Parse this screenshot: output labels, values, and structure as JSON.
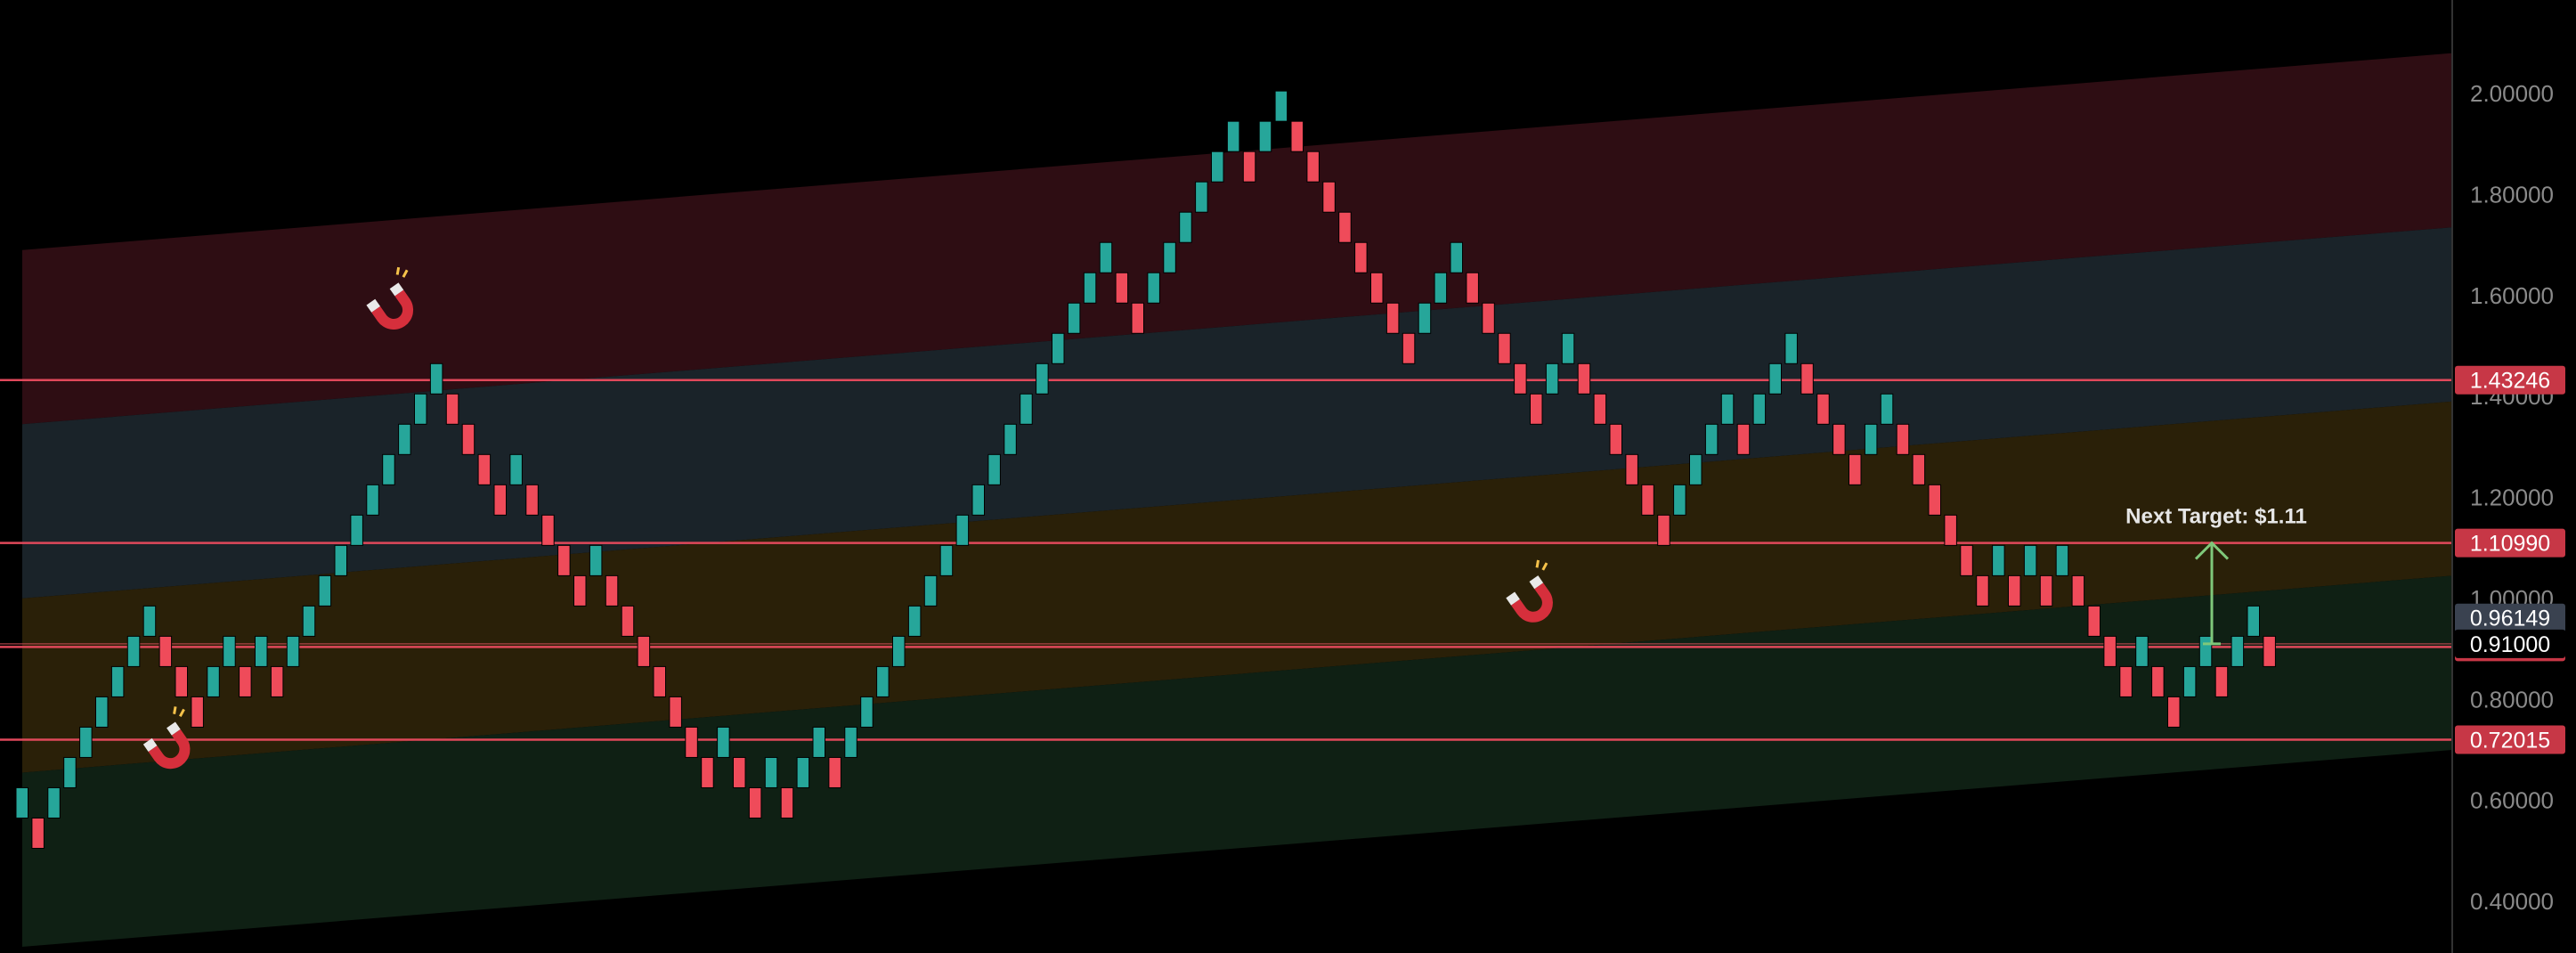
{
  "chart_data": {
    "type": "renko",
    "ylim": [
      0.32,
      2.1
    ],
    "y_ticks": [
      0.4,
      0.6,
      0.8,
      1.0,
      1.2,
      1.4,
      1.6,
      1.8,
      2.0
    ],
    "y_tick_labels": [
      "0.40000",
      "0.60000",
      "0.80000",
      "1.00000",
      "1.20000",
      "1.40000",
      "1.60000",
      "1.80000",
      "2.00000"
    ],
    "brick_size": 0.06,
    "bricks": [
      {
        "dir": "up",
        "open": 0.565,
        "close": 0.625
      },
      {
        "dir": "down",
        "open": 0.565,
        "close": 0.505
      },
      {
        "dir": "up",
        "open": 0.565,
        "close": 0.625
      },
      {
        "dir": "up",
        "open": 0.625,
        "close": 0.685
      },
      {
        "dir": "up",
        "open": 0.685,
        "close": 0.745
      },
      {
        "dir": "up",
        "open": 0.745,
        "close": 0.805
      },
      {
        "dir": "up",
        "open": 0.805,
        "close": 0.865
      },
      {
        "dir": "up",
        "open": 0.865,
        "close": 0.925
      },
      {
        "dir": "up",
        "open": 0.925,
        "close": 0.985
      },
      {
        "dir": "down",
        "open": 0.925,
        "close": 0.865
      },
      {
        "dir": "down",
        "open": 0.865,
        "close": 0.805
      },
      {
        "dir": "down",
        "open": 0.805,
        "close": 0.745
      },
      {
        "dir": "up",
        "open": 0.805,
        "close": 0.865
      },
      {
        "dir": "up",
        "open": 0.865,
        "close": 0.925
      },
      {
        "dir": "down",
        "open": 0.865,
        "close": 0.805
      },
      {
        "dir": "up",
        "open": 0.865,
        "close": 0.925
      },
      {
        "dir": "down",
        "open": 0.865,
        "close": 0.805
      },
      {
        "dir": "up",
        "open": 0.865,
        "close": 0.925
      },
      {
        "dir": "up",
        "open": 0.925,
        "close": 0.985
      },
      {
        "dir": "up",
        "open": 0.985,
        "close": 1.045
      },
      {
        "dir": "up",
        "open": 1.045,
        "close": 1.105
      },
      {
        "dir": "up",
        "open": 1.105,
        "close": 1.165
      },
      {
        "dir": "up",
        "open": 1.165,
        "close": 1.225
      },
      {
        "dir": "up",
        "open": 1.225,
        "close": 1.285
      },
      {
        "dir": "up",
        "open": 1.285,
        "close": 1.345
      },
      {
        "dir": "up",
        "open": 1.345,
        "close": 1.405
      },
      {
        "dir": "up",
        "open": 1.405,
        "close": 1.465
      },
      {
        "dir": "down",
        "open": 1.405,
        "close": 1.345
      },
      {
        "dir": "down",
        "open": 1.345,
        "close": 1.285
      },
      {
        "dir": "down",
        "open": 1.285,
        "close": 1.225
      },
      {
        "dir": "down",
        "open": 1.225,
        "close": 1.165
      },
      {
        "dir": "up",
        "open": 1.225,
        "close": 1.285
      },
      {
        "dir": "down",
        "open": 1.225,
        "close": 1.165
      },
      {
        "dir": "down",
        "open": 1.165,
        "close": 1.105
      },
      {
        "dir": "down",
        "open": 1.105,
        "close": 1.045
      },
      {
        "dir": "down",
        "open": 1.045,
        "close": 0.985
      },
      {
        "dir": "up",
        "open": 1.045,
        "close": 1.105
      },
      {
        "dir": "down",
        "open": 1.045,
        "close": 0.985
      },
      {
        "dir": "down",
        "open": 0.985,
        "close": 0.925
      },
      {
        "dir": "down",
        "open": 0.925,
        "close": 0.865
      },
      {
        "dir": "down",
        "open": 0.865,
        "close": 0.805
      },
      {
        "dir": "down",
        "open": 0.805,
        "close": 0.745
      },
      {
        "dir": "down",
        "open": 0.745,
        "close": 0.685
      },
      {
        "dir": "down",
        "open": 0.685,
        "close": 0.625
      },
      {
        "dir": "up",
        "open": 0.685,
        "close": 0.745
      },
      {
        "dir": "down",
        "open": 0.685,
        "close": 0.625
      },
      {
        "dir": "down",
        "open": 0.625,
        "close": 0.565
      },
      {
        "dir": "up",
        "open": 0.625,
        "close": 0.685
      },
      {
        "dir": "down",
        "open": 0.625,
        "close": 0.565
      },
      {
        "dir": "up",
        "open": 0.625,
        "close": 0.685
      },
      {
        "dir": "up",
        "open": 0.685,
        "close": 0.745
      },
      {
        "dir": "down",
        "open": 0.685,
        "close": 0.625
      },
      {
        "dir": "up",
        "open": 0.685,
        "close": 0.745
      },
      {
        "dir": "up",
        "open": 0.745,
        "close": 0.805
      },
      {
        "dir": "up",
        "open": 0.805,
        "close": 0.865
      },
      {
        "dir": "up",
        "open": 0.865,
        "close": 0.925
      },
      {
        "dir": "up",
        "open": 0.925,
        "close": 0.985
      },
      {
        "dir": "up",
        "open": 0.985,
        "close": 1.045
      },
      {
        "dir": "up",
        "open": 1.045,
        "close": 1.105
      },
      {
        "dir": "up",
        "open": 1.105,
        "close": 1.165
      },
      {
        "dir": "up",
        "open": 1.165,
        "close": 1.225
      },
      {
        "dir": "up",
        "open": 1.225,
        "close": 1.285
      },
      {
        "dir": "up",
        "open": 1.285,
        "close": 1.345
      },
      {
        "dir": "up",
        "open": 1.345,
        "close": 1.405
      },
      {
        "dir": "up",
        "open": 1.405,
        "close": 1.465
      },
      {
        "dir": "up",
        "open": 1.465,
        "close": 1.525
      },
      {
        "dir": "up",
        "open": 1.525,
        "close": 1.585
      },
      {
        "dir": "up",
        "open": 1.585,
        "close": 1.645
      },
      {
        "dir": "up",
        "open": 1.645,
        "close": 1.705
      },
      {
        "dir": "down",
        "open": 1.645,
        "close": 1.585
      },
      {
        "dir": "down",
        "open": 1.585,
        "close": 1.525
      },
      {
        "dir": "up",
        "open": 1.585,
        "close": 1.645
      },
      {
        "dir": "up",
        "open": 1.645,
        "close": 1.705
      },
      {
        "dir": "up",
        "open": 1.705,
        "close": 1.765
      },
      {
        "dir": "up",
        "open": 1.765,
        "close": 1.825
      },
      {
        "dir": "up",
        "open": 1.825,
        "close": 1.885
      },
      {
        "dir": "up",
        "open": 1.885,
        "close": 1.945
      },
      {
        "dir": "down",
        "open": 1.885,
        "close": 1.825
      },
      {
        "dir": "up",
        "open": 1.885,
        "close": 1.945
      },
      {
        "dir": "up",
        "open": 1.945,
        "close": 2.005
      },
      {
        "dir": "down",
        "open": 1.945,
        "close": 1.885
      },
      {
        "dir": "down",
        "open": 1.885,
        "close": 1.825
      },
      {
        "dir": "down",
        "open": 1.825,
        "close": 1.765
      },
      {
        "dir": "down",
        "open": 1.765,
        "close": 1.705
      },
      {
        "dir": "down",
        "open": 1.705,
        "close": 1.645
      },
      {
        "dir": "down",
        "open": 1.645,
        "close": 1.585
      },
      {
        "dir": "down",
        "open": 1.585,
        "close": 1.525
      },
      {
        "dir": "down",
        "open": 1.525,
        "close": 1.465
      },
      {
        "dir": "up",
        "open": 1.525,
        "close": 1.585
      },
      {
        "dir": "up",
        "open": 1.585,
        "close": 1.645
      },
      {
        "dir": "up",
        "open": 1.645,
        "close": 1.705
      },
      {
        "dir": "down",
        "open": 1.645,
        "close": 1.585
      },
      {
        "dir": "down",
        "open": 1.585,
        "close": 1.525
      },
      {
        "dir": "down",
        "open": 1.525,
        "close": 1.465
      },
      {
        "dir": "down",
        "open": 1.465,
        "close": 1.405
      },
      {
        "dir": "down",
        "open": 1.405,
        "close": 1.345
      },
      {
        "dir": "up",
        "open": 1.405,
        "close": 1.465
      },
      {
        "dir": "up",
        "open": 1.465,
        "close": 1.525
      },
      {
        "dir": "down",
        "open": 1.465,
        "close": 1.405
      },
      {
        "dir": "down",
        "open": 1.405,
        "close": 1.345
      },
      {
        "dir": "down",
        "open": 1.345,
        "close": 1.285
      },
      {
        "dir": "down",
        "open": 1.285,
        "close": 1.225
      },
      {
        "dir": "down",
        "open": 1.225,
        "close": 1.165
      },
      {
        "dir": "down",
        "open": 1.165,
        "close": 1.105
      },
      {
        "dir": "up",
        "open": 1.165,
        "close": 1.225
      },
      {
        "dir": "up",
        "open": 1.225,
        "close": 1.285
      },
      {
        "dir": "up",
        "open": 1.285,
        "close": 1.345
      },
      {
        "dir": "up",
        "open": 1.345,
        "close": 1.405
      },
      {
        "dir": "down",
        "open": 1.345,
        "close": 1.285
      },
      {
        "dir": "up",
        "open": 1.345,
        "close": 1.405
      },
      {
        "dir": "up",
        "open": 1.405,
        "close": 1.465
      },
      {
        "dir": "up",
        "open": 1.465,
        "close": 1.525
      },
      {
        "dir": "down",
        "open": 1.465,
        "close": 1.405
      },
      {
        "dir": "down",
        "open": 1.405,
        "close": 1.345
      },
      {
        "dir": "down",
        "open": 1.345,
        "close": 1.285
      },
      {
        "dir": "down",
        "open": 1.285,
        "close": 1.225
      },
      {
        "dir": "up",
        "open": 1.285,
        "close": 1.345
      },
      {
        "dir": "up",
        "open": 1.345,
        "close": 1.405
      },
      {
        "dir": "down",
        "open": 1.345,
        "close": 1.285
      },
      {
        "dir": "down",
        "open": 1.285,
        "close": 1.225
      },
      {
        "dir": "down",
        "open": 1.225,
        "close": 1.165
      },
      {
        "dir": "down",
        "open": 1.165,
        "close": 1.105
      },
      {
        "dir": "down",
        "open": 1.105,
        "close": 1.045
      },
      {
        "dir": "down",
        "open": 1.045,
        "close": 0.985
      },
      {
        "dir": "up",
        "open": 1.045,
        "close": 1.105
      },
      {
        "dir": "down",
        "open": 1.045,
        "close": 0.985
      },
      {
        "dir": "up",
        "open": 1.045,
        "close": 1.105
      },
      {
        "dir": "down",
        "open": 1.045,
        "close": 0.985
      },
      {
        "dir": "up",
        "open": 1.045,
        "close": 1.105
      },
      {
        "dir": "down",
        "open": 1.045,
        "close": 0.985
      },
      {
        "dir": "down",
        "open": 0.985,
        "close": 0.925
      },
      {
        "dir": "down",
        "open": 0.925,
        "close": 0.865
      },
      {
        "dir": "down",
        "open": 0.865,
        "close": 0.805
      },
      {
        "dir": "up",
        "open": 0.865,
        "close": 0.925
      },
      {
        "dir": "down",
        "open": 0.865,
        "close": 0.805
      },
      {
        "dir": "down",
        "open": 0.805,
        "close": 0.745
      },
      {
        "dir": "up",
        "open": 0.805,
        "close": 0.865
      },
      {
        "dir": "up",
        "open": 0.865,
        "close": 0.925
      },
      {
        "dir": "down",
        "open": 0.865,
        "close": 0.805
      },
      {
        "dir": "up",
        "open": 0.865,
        "close": 0.925
      },
      {
        "dir": "up",
        "open": 0.925,
        "close": 0.985
      },
      {
        "dir": "down",
        "open": 0.925,
        "close": 0.865
      }
    ],
    "channel_bands": [
      {
        "color": "#2e0d13",
        "top_left": 1.69,
        "top_right": 2.08,
        "bottom_left": 1.345,
        "bottom_right": 1.735
      },
      {
        "color": "#1a2329",
        "top_left": 1.345,
        "top_right": 1.735,
        "bottom_left": 1.0,
        "bottom_right": 1.39
      },
      {
        "color": "#2a2008",
        "top_left": 1.0,
        "top_right": 1.39,
        "bottom_left": 0.655,
        "bottom_right": 1.045
      },
      {
        "color": "#0f2014",
        "top_left": 0.655,
        "top_right": 1.045,
        "bottom_left": 0.31,
        "bottom_right": 0.7
      }
    ],
    "horizontal_levels": [
      {
        "value": 1.43246,
        "label": "1.43246",
        "color": "#e0485a",
        "tag_bg": "#c73746",
        "tag_color": "#ffffff"
      },
      {
        "value": 1.1099,
        "label": "1.10990",
        "color": "#e0485a",
        "tag_bg": "#c73746",
        "tag_color": "#ffffff"
      },
      {
        "value": 0.90382,
        "label": "0.90382",
        "color": "#e0485a",
        "tag_bg": "#c73746",
        "tag_color": "#ffffff"
      },
      {
        "value": 0.72015,
        "label": "0.72015",
        "color": "#e0485a",
        "tag_bg": "#c73746",
        "tag_color": "#ffffff"
      }
    ],
    "price_tags": [
      {
        "value": 0.96149,
        "label": "0.96149",
        "bg": "#3a4250",
        "color": "#ffffff"
      },
      {
        "value": 0.91,
        "label": "0.91000",
        "bg": "#000000",
        "color": "#ffffff"
      }
    ],
    "annotation": {
      "text": "Next Target: $1.11",
      "from_value": 0.91,
      "to_value": 1.1099,
      "color": "#7fc87a"
    },
    "magnet_icons": [
      {
        "x_brick": 23.5,
        "value": 1.58
      },
      {
        "x_brick": 9.5,
        "value": 0.71
      },
      {
        "x_brick": 95.0,
        "value": 1.0
      }
    ],
    "colors": {
      "up": "#26a69a",
      "down": "#ef4b5a",
      "background": "#000000",
      "axis_line": "#333333"
    }
  }
}
